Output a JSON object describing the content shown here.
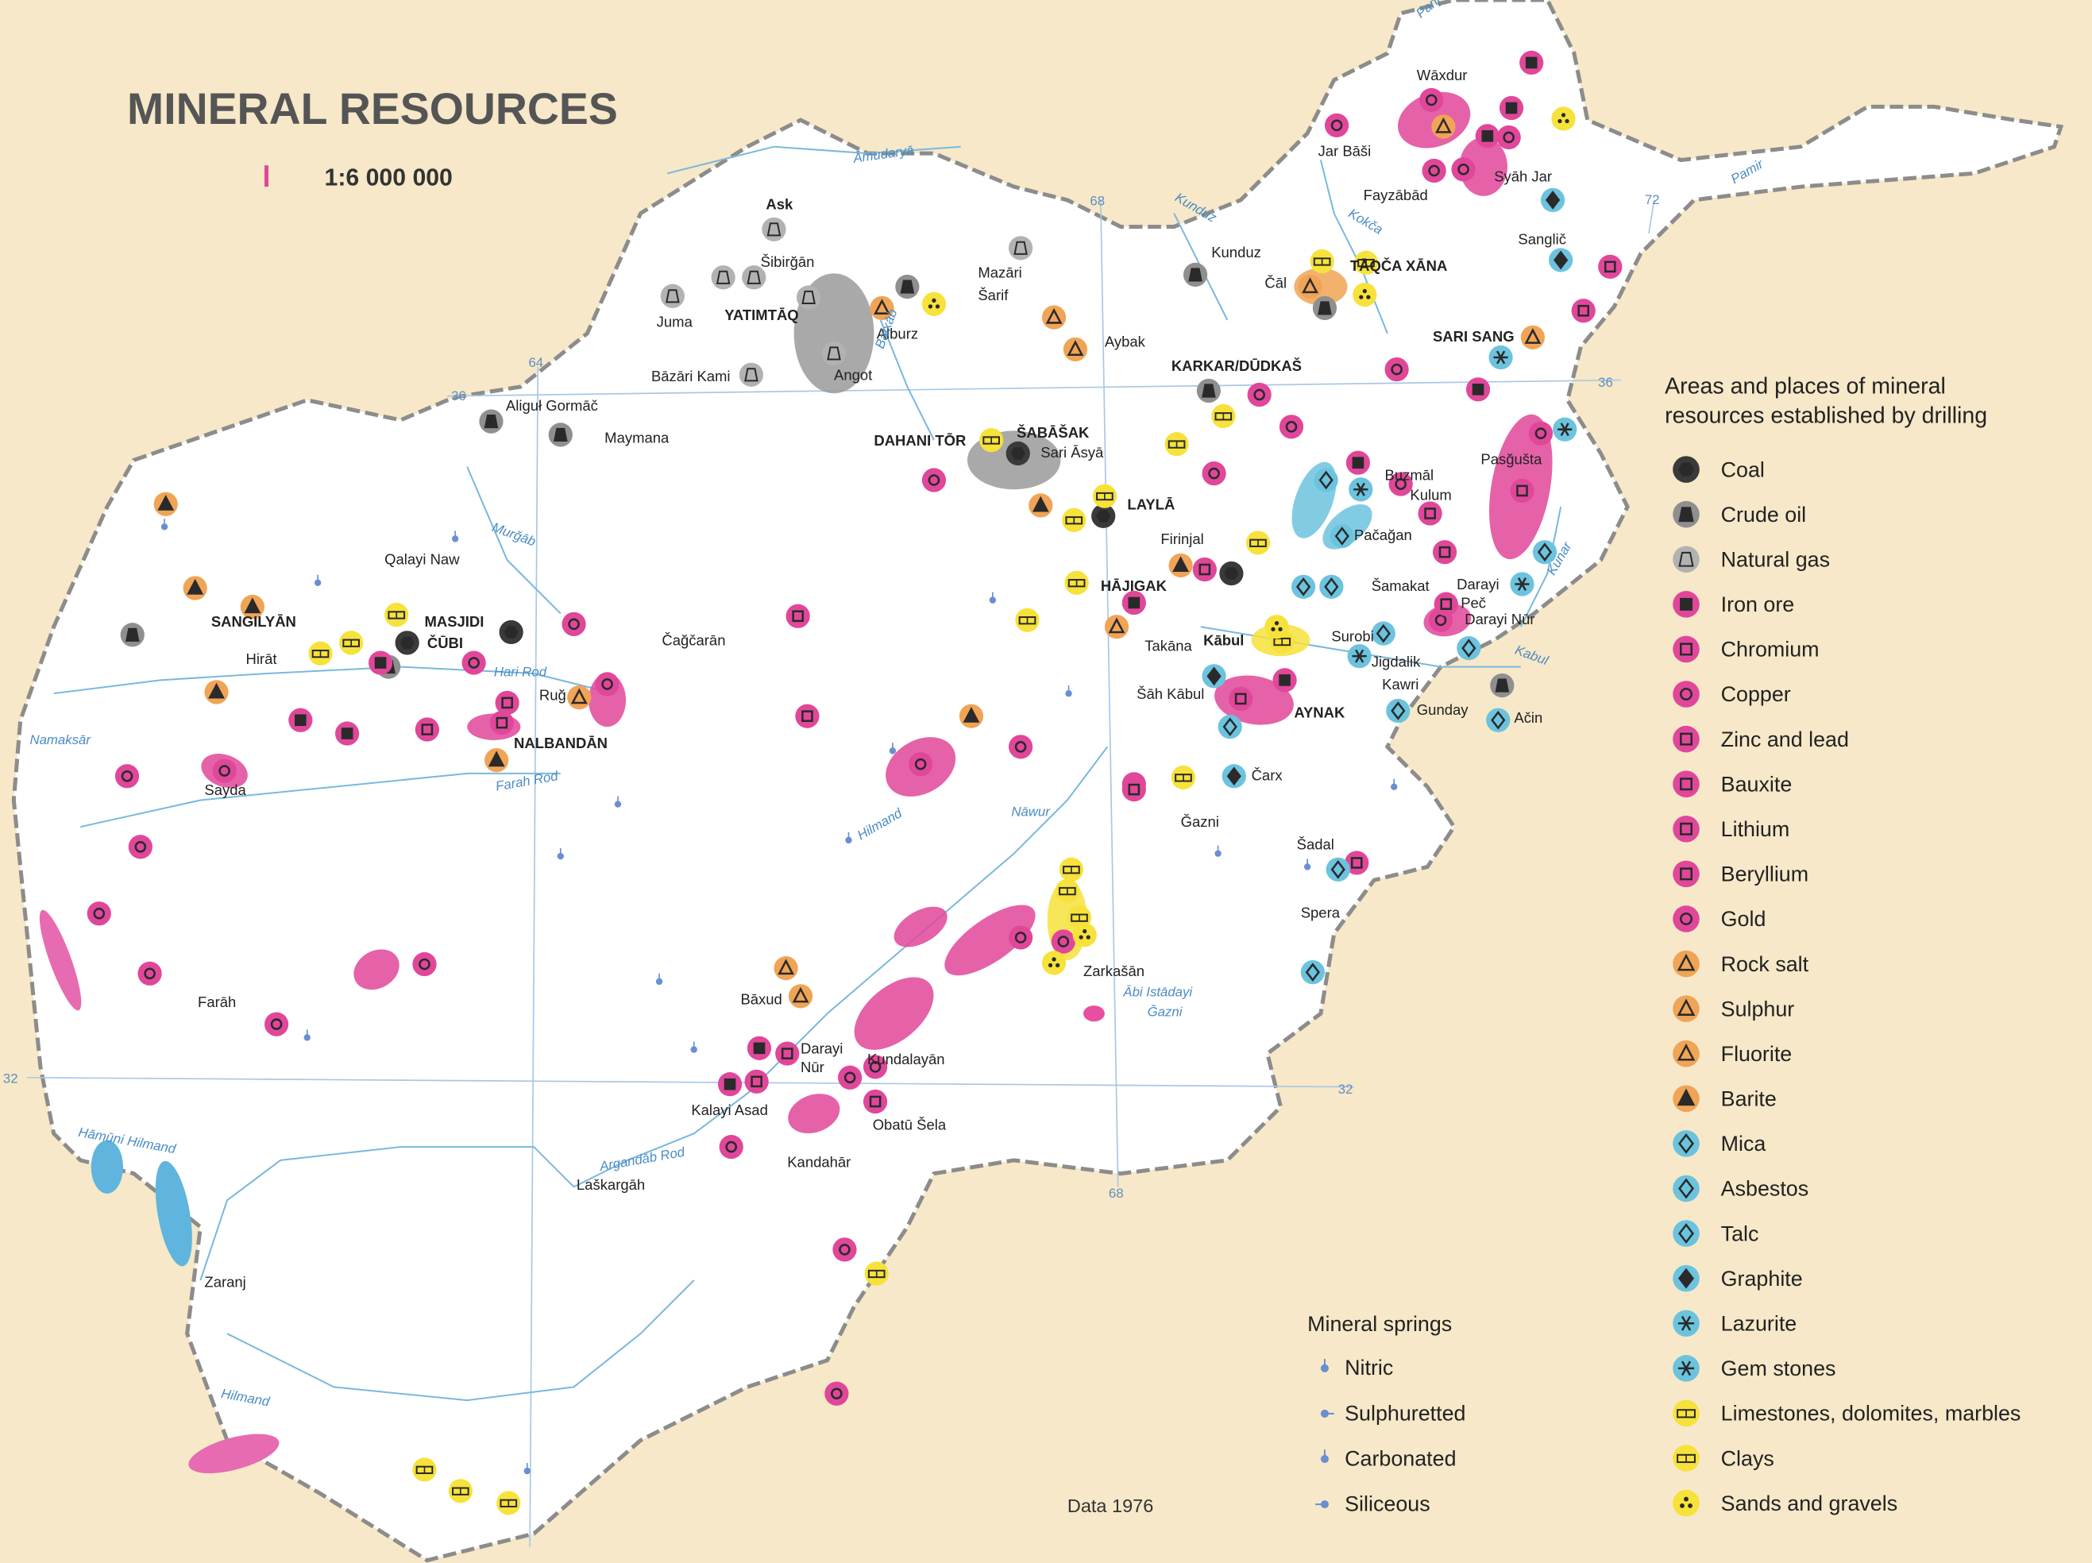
{
  "title": "MINERAL RESOURCES",
  "scale": "1:6 000 000",
  "legend": {
    "title_lines": [
      "Areas and places of mineral",
      "resources established by drilling"
    ],
    "items": [
      {
        "label": "Coal",
        "color": "#3a3a3a"
      },
      {
        "label": "Crude oil",
        "color": "#8f8f8f"
      },
      {
        "label": "Natural gas",
        "color": "#b2b2b2"
      },
      {
        "label": "Iron ore",
        "color": "#e0479a"
      },
      {
        "label": "Chromium",
        "color": "#e0479a"
      },
      {
        "label": "Copper",
        "color": "#e0479a"
      },
      {
        "label": "Zinc and lead",
        "color": "#e0479a"
      },
      {
        "label": "Bauxite",
        "color": "#e0479a"
      },
      {
        "label": "Lithium",
        "color": "#e0479a"
      },
      {
        "label": "Beryllium",
        "color": "#e0479a"
      },
      {
        "label": "Gold",
        "color": "#e0479a"
      },
      {
        "label": "Rock salt",
        "color": "#f0a455"
      },
      {
        "label": "Sulphur",
        "color": "#f0a455"
      },
      {
        "label": "Fluorite",
        "color": "#f0a455"
      },
      {
        "label": "Barite",
        "color": "#f0a455"
      },
      {
        "label": "Mica",
        "color": "#6cc3de"
      },
      {
        "label": "Asbestos",
        "color": "#6cc3de"
      },
      {
        "label": "Talc",
        "color": "#6cc3de"
      },
      {
        "label": "Graphite",
        "color": "#6cc3de"
      },
      {
        "label": "Lazurite",
        "color": "#6cc3de"
      },
      {
        "label": "Gem stones",
        "color": "#6cc3de"
      },
      {
        "label": "Limestones, dolomites, marbles",
        "color": "#f6e23a"
      },
      {
        "label": "Clays",
        "color": "#f6e23a"
      },
      {
        "label": "Sands and gravels",
        "color": "#f6e23a"
      }
    ]
  },
  "springs": {
    "title": "Mineral springs",
    "items": [
      "Nitric",
      "Sulphuretted",
      "Carbonated",
      "Siliceous"
    ]
  },
  "source": "Data 1976",
  "places": [
    "Ask",
    "Šibirğān",
    "Juma",
    "YATIMTĀQ",
    "Alburz",
    "Angot",
    "Bāzāri Kami",
    "Mazāri",
    "Šarif",
    "Aybak",
    "Kunduz",
    "Čāl",
    "TĀQČA XĀNA",
    "Wāxdur",
    "Jar Bāši",
    "Fayzābād",
    "Syāh Jar",
    "Sanglič",
    "SARI SANG",
    "KARKAR/DŪDKAŠ",
    "Aliguł Gormāč",
    "Maymana",
    "DAHANI TŌR",
    "ŠABĀŠAK",
    "Sari Āsyā",
    "LAYLĀ",
    "Qalayi Naw",
    "Firinjal",
    "HĀJIGAK",
    "SANGILYĀN",
    "MASJIDI",
    "ČŪBI",
    "Hirāt",
    "Čağčarān",
    "Ruğ",
    "NALBANDĀN",
    "Sayda",
    "Kābul",
    "Takāna",
    "Šāh Kābul",
    "AYNAK",
    "Surobi",
    "Jigdalik",
    "Kawri",
    "Gunday",
    "Ačin",
    "Čarx",
    "Ğazni",
    "Buzmāl",
    "Kulum",
    "Pačağan",
    "Šamakat",
    "Darayi",
    "Peč",
    "Darayi Nūr",
    "Pasğušta",
    "Šadal",
    "Spera",
    "Zarkašān",
    "Bāxud",
    "Darayi",
    "Nūr",
    "Kundalayān",
    "Kalayi Asad",
    "Obatū Šela",
    "Kandahār",
    "Laškargāh",
    "Farāh",
    "Zaranj"
  ],
  "waters": [
    "Āmudaryā",
    "Hari Rod",
    "Farah Rod",
    "Hilmand",
    "Argandāb Rod",
    "Hilmand",
    "Kunduz",
    "Kokča",
    "Pamir",
    "Kabul",
    "Kunar",
    "Balxāb",
    "Murğāb",
    "Nāwur",
    "Ābi Istādayi",
    "Ğazni",
    "Namaksār",
    "Hāmūni Hilmand",
    "Panj"
  ],
  "graticule": [
    "36",
    "36",
    "32",
    "32",
    "64",
    "68",
    "68",
    "72"
  ]
}
